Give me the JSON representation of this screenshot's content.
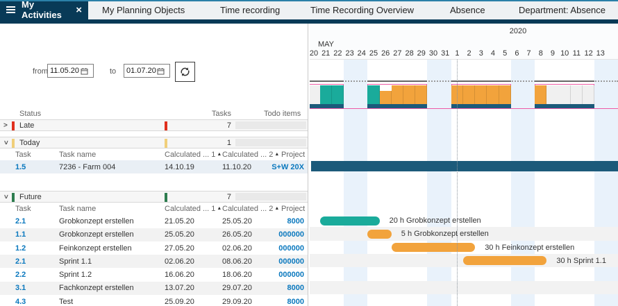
{
  "tabs": {
    "active": {
      "label": "My Activities"
    },
    "items": [
      {
        "label": "My Planning Objects"
      },
      {
        "label": "Time recording"
      },
      {
        "label": "Time Recording Overview"
      },
      {
        "label": "Absence"
      },
      {
        "label": "Department: Absence"
      }
    ]
  },
  "filter": {
    "from_label": "from",
    "from_value": "11.05.20",
    "to_label": "to",
    "to_value": "01.07.20"
  },
  "icons": {
    "close": "×",
    "chevron": ">",
    "sort_asc": "▲"
  },
  "table": {
    "headers": {
      "status": "Status",
      "tasks": "Tasks",
      "todo": "Todo items"
    },
    "sub_headers": {
      "task": "Task",
      "task_name": "Task name",
      "calc1": "Calculated ... 1",
      "calc2": "Calculated ... 2",
      "project": "Project"
    },
    "groups": [
      {
        "label": "Late",
        "color": "#e0301e",
        "count": "7",
        "expanded": false,
        "rows": []
      },
      {
        "label": "Today",
        "color": "#f0cf7a",
        "count": "1",
        "expanded": true,
        "rows": [
          {
            "task": "1.5",
            "name": "7236 - Farm 004",
            "calc1": "14.10.19",
            "calc2": "11.10.20",
            "project": "S+W 20X",
            "selected": true
          }
        ]
      },
      {
        "label": "Future",
        "color": "#2e7d4f",
        "count": "7",
        "expanded": true,
        "rows": [
          {
            "task": "2.1",
            "name": "Grobkonzept erstellen",
            "calc1": "21.05.20",
            "calc2": "25.05.20",
            "project": "8000"
          },
          {
            "task": "1.1",
            "name": "Grobkonzept erstellen",
            "calc1": "25.05.20",
            "calc2": "26.05.20",
            "project": "000000"
          },
          {
            "task": "1.2",
            "name": "Feinkonzept erstellen",
            "calc1": "27.05.20",
            "calc2": "02.06.20",
            "project": "000000"
          },
          {
            "task": "2.1",
            "name": "Sprint 1.1",
            "calc1": "02.06.20",
            "calc2": "08.06.20",
            "project": "000000"
          },
          {
            "task": "2.2",
            "name": "Sprint 1.2",
            "calc1": "16.06.20",
            "calc2": "18.06.20",
            "project": "000000"
          },
          {
            "task": "3.1",
            "name": "Fachkonzept erstellen",
            "calc1": "13.07.20",
            "calc2": "29.07.20",
            "project": "8000"
          },
          {
            "task": "4.3",
            "name": "Test",
            "calc1": "25.09.20",
            "calc2": "29.09.20",
            "project": "8000"
          }
        ]
      }
    ]
  },
  "gantt": {
    "year": "2020",
    "month": "MAY",
    "days": [
      "20",
      "21",
      "22",
      "23",
      "24",
      "25",
      "26",
      "27",
      "28",
      "29",
      "30",
      "31",
      "1",
      "2",
      "3",
      "4",
      "5",
      "6",
      "7",
      "8",
      "9",
      "10",
      "11",
      "12",
      "13"
    ],
    "weekends": [
      [
        3,
        5
      ],
      [
        10,
        12
      ],
      [
        17,
        19
      ],
      [
        24,
        26
      ]
    ],
    "today_day_index": 12.5,
    "colors": {
      "teal": "#1aab9b",
      "orange": "#f2a33c",
      "grey": "#f0f0f0",
      "navy": "#1c5a7a",
      "pink": "#ee5aa5",
      "weekend": "#e9f2fb",
      "capacity": "#666666"
    },
    "histogram": {
      "groups": [
        {
          "span": [
            0,
            3
          ],
          "blocks": [
            {
              "range": [
                0,
                1
              ],
              "color": "grey"
            },
            {
              "range": [
                1,
                3
              ],
              "color": "teal"
            }
          ]
        },
        {
          "span": [
            5,
            10
          ],
          "blocks": [
            {
              "range": [
                5,
                6
              ],
              "color": "teal"
            },
            {
              "range": [
                6,
                7
              ],
              "color": "orange",
              "notch": true
            },
            {
              "range": [
                7,
                10
              ],
              "color": "orange"
            }
          ]
        },
        {
          "span": [
            12,
            17
          ],
          "blocks": [
            {
              "range": [
                12,
                17
              ],
              "color": "orange"
            }
          ]
        },
        {
          "span": [
            19,
            24
          ],
          "blocks": [
            {
              "range": [
                19,
                20
              ],
              "color": "orange"
            },
            {
              "range": [
                20,
                24
              ],
              "color": "grey"
            }
          ]
        }
      ]
    },
    "project_bar": {
      "task": "1.5",
      "color": "navy"
    },
    "bars": [
      {
        "row": 0,
        "start": 1,
        "end": 6,
        "color": "teal",
        "label": "20 h Grobkonzept erstellen"
      },
      {
        "row": 1,
        "start": 5,
        "end": 7,
        "color": "orange",
        "label": "5 h Grobkonzept erstellen"
      },
      {
        "row": 2,
        "start": 7,
        "end": 14,
        "color": "orange",
        "label": "30 h Feinkonzept erstellen"
      },
      {
        "row": 3,
        "start": 13,
        "end": 20,
        "color": "orange",
        "label": "30 h Sprint 1.1"
      }
    ]
  }
}
